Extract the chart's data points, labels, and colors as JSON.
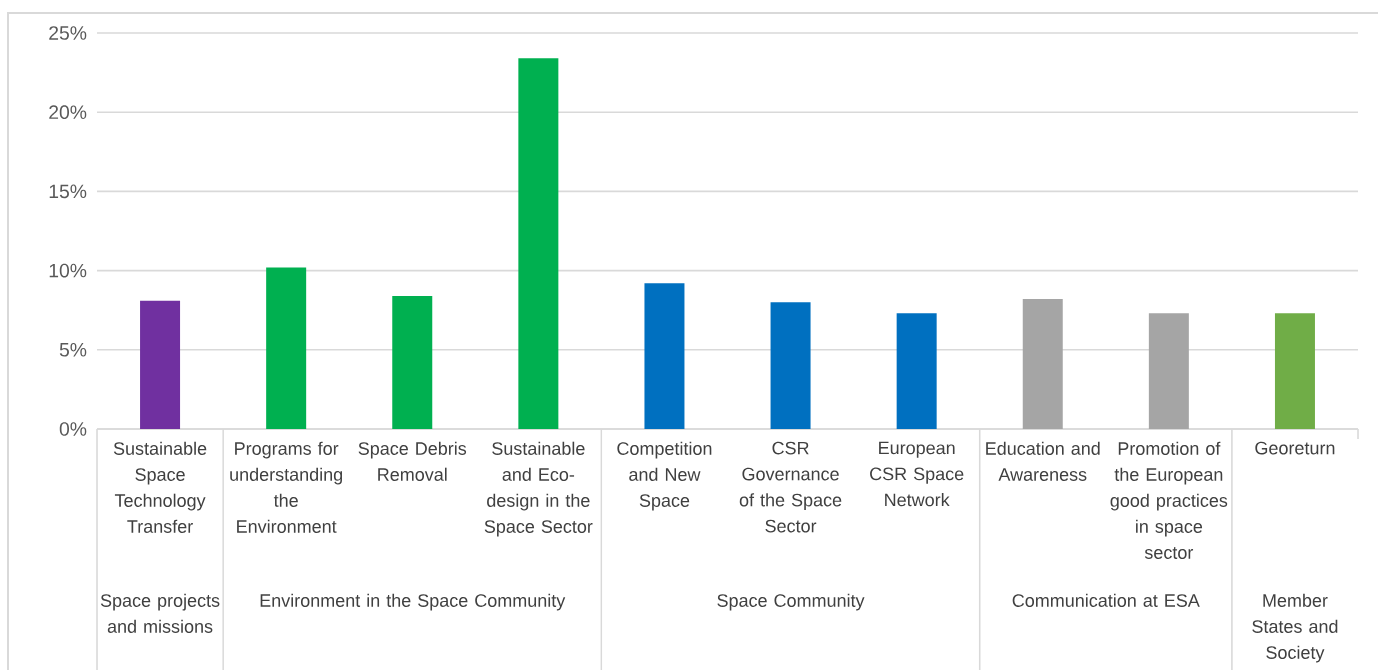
{
  "chart_data": {
    "type": "bar",
    "categories": [
      "Sustainable Space Technology Transfer",
      "Programs for understanding the Environment",
      "Space Debris Removal",
      "Sustainable and Eco-design in the Space Sector",
      "Competition and New Space",
      "CSR Governance of the Space Sector",
      "European CSR Space Network",
      "Education and Awareness",
      "Promotion of the European good practices in space sector",
      "Georeturn"
    ],
    "values": [
      8.1,
      10.2,
      8.4,
      23.4,
      9.2,
      8.0,
      7.3,
      8.2,
      7.3,
      7.3
    ],
    "colors": [
      "#7030a0",
      "#00b050",
      "#00b050",
      "#00b050",
      "#0070c0",
      "#0070c0",
      "#0070c0",
      "#a5a5a5",
      "#a5a5a5",
      "#70ad47"
    ],
    "ylim": [
      0,
      25
    ],
    "yticks": [
      {
        "value": 0,
        "label": "0%"
      },
      {
        "value": 5,
        "label": "5%"
      },
      {
        "value": 10,
        "label": "10%"
      },
      {
        "value": 15,
        "label": "15%"
      },
      {
        "value": 20,
        "label": "20%"
      },
      {
        "value": 25,
        "label": "25%"
      }
    ],
    "grid": "y",
    "annotations": [
      "Space projects and missions",
      "Environment in the Space Community",
      "Space Community",
      "Communication at ESA",
      "Member States and Society"
    ]
  }
}
